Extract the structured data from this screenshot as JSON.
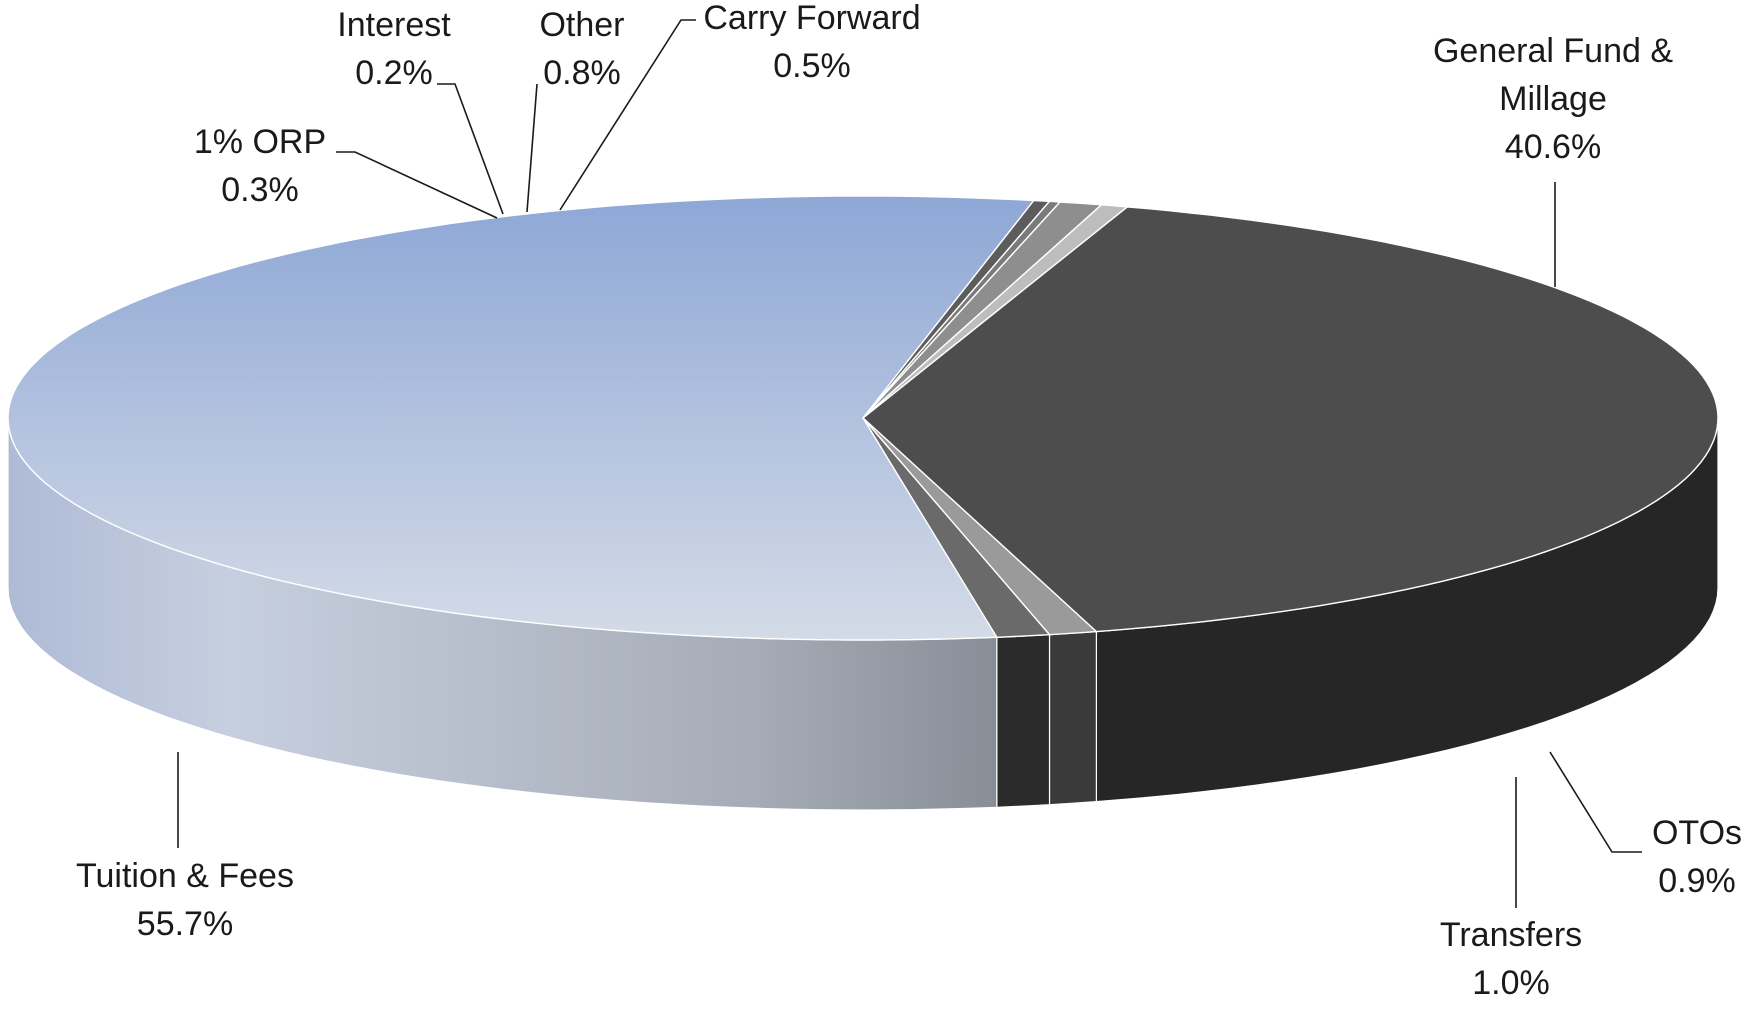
{
  "chart_data": {
    "type": "pie",
    "style": "3d",
    "title": "",
    "start_category": "General Fund & Millage",
    "slices": [
      {
        "name": "General Fund & Millage",
        "value": 40.6,
        "label_line1": "General Fund &",
        "label_line2": "Millage",
        "label_value": "40.6%",
        "color": "#4d4d4d",
        "side_color": "#262626"
      },
      {
        "name": "OTOs",
        "value": 0.9,
        "label_line1": "OTOs",
        "label_line2": "",
        "label_value": "0.9%",
        "color": "#9a9a9a",
        "side_color": "#3a3a3a"
      },
      {
        "name": "Transfers",
        "value": 1.0,
        "label_line1": "Transfers",
        "label_line2": "",
        "label_value": "1.0%",
        "color": "#6a6a6a",
        "side_color": "#2b2b2b"
      },
      {
        "name": "Tuition & Fees",
        "value": 55.7,
        "label_line1": "Tuition & Fees",
        "label_line2": "",
        "label_value": "55.7%",
        "color": "#a9b9dc",
        "side_color": "#b9c4d8"
      },
      {
        "name": "1% ORP",
        "value": 0.3,
        "label_line1": "1% ORP",
        "label_line2": "",
        "label_value": "0.3%",
        "color": "#5c5c5c",
        "side_color": "#5c5c5c"
      },
      {
        "name": "Interest",
        "value": 0.2,
        "label_line1": "Interest",
        "label_line2": "",
        "label_value": "0.2%",
        "color": "#7a7a7a",
        "side_color": "#7a7a7a"
      },
      {
        "name": "Other",
        "value": 0.8,
        "label_line1": "Other",
        "label_line2": "",
        "label_value": "0.8%",
        "color": "#8e8e8e",
        "side_color": "#8e8e8e"
      },
      {
        "name": "Carry Forward",
        "value": 0.5,
        "label_line1": "Carry Forward",
        "label_line2": "",
        "label_value": "0.5%",
        "color": "#bdbdbd",
        "side_color": "#bdbdbd"
      }
    ]
  }
}
